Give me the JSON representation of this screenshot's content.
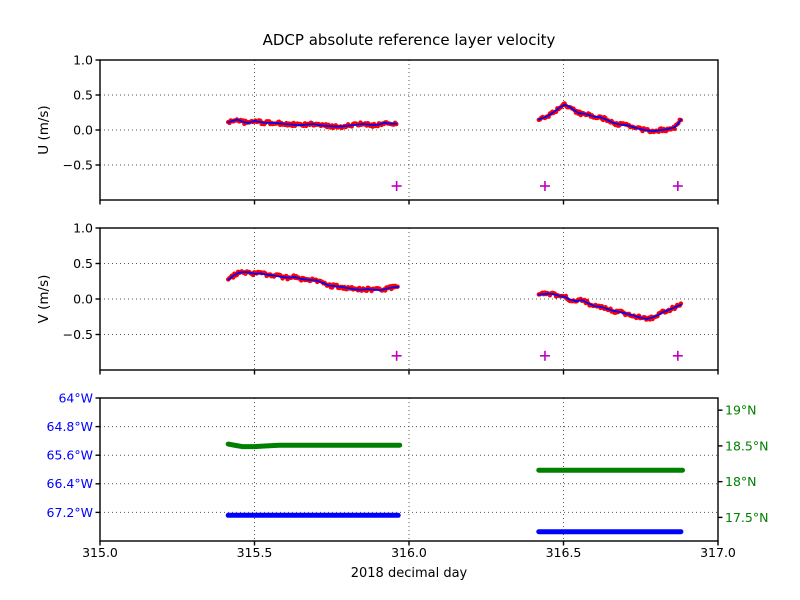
{
  "colors": {
    "scatter_red": "#ff0000",
    "line_blue": "#0000ff",
    "marker_magenta": "#bf00bf",
    "lon_blue": "#0000ff",
    "lat_green": "#008000",
    "grid": "#555555",
    "axis": "#000000",
    "background": "#ffffff"
  },
  "chart_data": [
    {
      "id": "u-velocity",
      "type": "scatter",
      "title": "ADCP absolute reference layer velocity",
      "ylabel": "U (m/s)",
      "ylim": [
        1.0,
        -1.0
      ],
      "yticks": [
        {
          "v": 1.0,
          "label": "1.0"
        },
        {
          "v": 0.5,
          "label": "0.5"
        },
        {
          "v": 0.0,
          "label": "0.0"
        },
        {
          "v": -0.5,
          "label": "−0.5"
        }
      ],
      "grid_y": [
        0.5,
        0.0,
        -0.5
      ],
      "xlim": [
        315.0,
        317.0
      ],
      "xticks": [
        315.0,
        315.5,
        316.0,
        316.5,
        317.0
      ],
      "grid_x": [
        315.5,
        316.0,
        316.5
      ],
      "series": [
        {
          "name": "u-segment-1",
          "spread": 0.024,
          "points": [
            [
              315.415,
              0.11
            ],
            [
              315.43,
              0.13
            ],
            [
              315.445,
              0.15
            ],
            [
              315.46,
              0.12
            ],
            [
              315.48,
              0.1
            ],
            [
              315.5,
              0.13
            ],
            [
              315.53,
              0.105
            ],
            [
              315.57,
              0.1
            ],
            [
              315.6,
              0.085
            ],
            [
              315.63,
              0.075
            ],
            [
              315.65,
              0.07
            ],
            [
              315.69,
              0.085
            ],
            [
              315.71,
              0.07
            ],
            [
              315.73,
              0.06
            ],
            [
              315.76,
              0.05
            ],
            [
              315.78,
              0.05
            ],
            [
              315.8,
              0.06
            ],
            [
              315.82,
              0.07
            ],
            [
              315.85,
              0.085
            ],
            [
              315.885,
              0.07
            ],
            [
              315.905,
              0.08
            ],
            [
              315.92,
              0.105
            ],
            [
              315.94,
              0.09
            ],
            [
              315.96,
              0.09
            ]
          ]
        },
        {
          "name": "u-segment-2",
          "spread": 0.024,
          "points": [
            [
              316.42,
              0.15
            ],
            [
              316.445,
              0.19
            ],
            [
              316.47,
              0.26
            ],
            [
              316.49,
              0.33
            ],
            [
              316.505,
              0.36
            ],
            [
              316.52,
              0.33
            ],
            [
              316.535,
              0.28
            ],
            [
              316.55,
              0.24
            ],
            [
              316.57,
              0.23
            ],
            [
              316.6,
              0.19
            ],
            [
              316.62,
              0.18
            ],
            [
              316.64,
              0.145
            ],
            [
              316.66,
              0.105
            ],
            [
              316.68,
              0.08
            ],
            [
              316.705,
              0.07
            ],
            [
              316.73,
              0.035
            ],
            [
              316.75,
              0.01
            ],
            [
              316.77,
              -0.005
            ],
            [
              316.79,
              -0.015
            ],
            [
              316.81,
              -0.005
            ],
            [
              316.835,
              0.01
            ],
            [
              316.86,
              0.04
            ],
            [
              316.875,
              0.115
            ],
            [
              316.88,
              0.15
            ]
          ]
        }
      ],
      "markers": {
        "symbol": "+",
        "points": [
          [
            315.96,
            -0.8
          ],
          [
            316.44,
            -0.8
          ],
          [
            316.87,
            -0.8
          ]
        ]
      }
    },
    {
      "id": "v-velocity",
      "type": "scatter",
      "ylabel": "V (m/s)",
      "ylim": [
        1.0,
        -1.0
      ],
      "yticks": [
        {
          "v": 1.0,
          "label": "1.0"
        },
        {
          "v": 0.5,
          "label": "0.5"
        },
        {
          "v": 0.0,
          "label": "0.0"
        },
        {
          "v": -0.5,
          "label": "−0.5"
        }
      ],
      "grid_y": [
        0.5,
        0.0,
        -0.5
      ],
      "xlim": [
        315.0,
        317.0
      ],
      "xticks": [
        315.0,
        315.5,
        316.0,
        316.5,
        317.0
      ],
      "grid_x": [
        315.5,
        316.0,
        316.5
      ],
      "series": [
        {
          "name": "v-segment-1",
          "spread": 0.024,
          "points": [
            [
              315.415,
              0.27
            ],
            [
              315.435,
              0.34
            ],
            [
              315.45,
              0.37
            ],
            [
              315.47,
              0.38
            ],
            [
              315.485,
              0.37
            ],
            [
              315.5,
              0.355
            ],
            [
              315.52,
              0.36
            ],
            [
              315.545,
              0.34
            ],
            [
              315.565,
              0.33
            ],
            [
              315.59,
              0.31
            ],
            [
              315.61,
              0.3
            ],
            [
              315.63,
              0.31
            ],
            [
              315.65,
              0.285
            ],
            [
              315.675,
              0.27
            ],
            [
              315.7,
              0.26
            ],
            [
              315.72,
              0.23
            ],
            [
              315.74,
              0.19
            ],
            [
              315.76,
              0.18
            ],
            [
              315.78,
              0.17
            ],
            [
              315.8,
              0.155
            ],
            [
              315.82,
              0.14
            ],
            [
              315.845,
              0.13
            ],
            [
              315.865,
              0.14
            ],
            [
              315.89,
              0.13
            ],
            [
              315.91,
              0.125
            ],
            [
              315.93,
              0.15
            ],
            [
              315.95,
              0.165
            ],
            [
              315.965,
              0.17
            ]
          ]
        },
        {
          "name": "v-segment-2",
          "spread": 0.024,
          "points": [
            [
              316.42,
              0.06
            ],
            [
              316.45,
              0.075
            ],
            [
              316.47,
              0.065
            ],
            [
              316.49,
              0.04
            ],
            [
              316.505,
              0.03
            ],
            [
              316.52,
              -0.005
            ],
            [
              316.54,
              -0.03
            ],
            [
              316.56,
              -0.015
            ],
            [
              316.58,
              -0.06
            ],
            [
              316.6,
              -0.1
            ],
            [
              316.62,
              -0.11
            ],
            [
              316.645,
              -0.145
            ],
            [
              316.665,
              -0.17
            ],
            [
              316.685,
              -0.185
            ],
            [
              316.71,
              -0.215
            ],
            [
              316.73,
              -0.24
            ],
            [
              316.75,
              -0.265
            ],
            [
              316.77,
              -0.28
            ],
            [
              316.785,
              -0.265
            ],
            [
              316.805,
              -0.23
            ],
            [
              316.82,
              -0.19
            ],
            [
              316.84,
              -0.155
            ],
            [
              316.86,
              -0.12
            ],
            [
              316.88,
              -0.08
            ]
          ]
        }
      ],
      "markers": {
        "symbol": "+",
        "points": [
          [
            315.96,
            -0.8
          ],
          [
            316.44,
            -0.8
          ],
          [
            316.87,
            -0.8
          ]
        ]
      }
    },
    {
      "id": "position",
      "type": "line",
      "xlabel": "2018 decimal day",
      "xlim": [
        315.0,
        317.0
      ],
      "xticks": [
        {
          "v": 315.0,
          "label": "315.0"
        },
        {
          "v": 315.5,
          "label": "315.5"
        },
        {
          "v": 316.0,
          "label": "316.0"
        },
        {
          "v": 316.5,
          "label": "316.5"
        },
        {
          "v": 317.0,
          "label": "317.0"
        }
      ],
      "grid_x": [
        315.5,
        316.0,
        316.5
      ],
      "left_axis": {
        "name": "longitude",
        "ylim": [
          64.0,
          68.0
        ],
        "yticks": [
          {
            "v": 64.0,
            "label": "64°W"
          },
          {
            "v": 64.8,
            "label": "64.8°W"
          },
          {
            "v": 65.6,
            "label": "65.6°W"
          },
          {
            "v": 66.4,
            "label": "66.4°W"
          },
          {
            "v": 67.2,
            "label": "67.2°W"
          }
        ],
        "grid_y": [
          64.8,
          65.6,
          66.4,
          67.2
        ]
      },
      "right_axis": {
        "name": "latitude",
        "ylim": [
          19.17,
          17.17
        ],
        "yticks": [
          {
            "v": 19.0,
            "label": "19°N"
          },
          {
            "v": 18.5,
            "label": "18.5°N"
          },
          {
            "v": 18.0,
            "label": "18°N"
          },
          {
            "v": 17.5,
            "label": "17.5°N"
          }
        ]
      },
      "series": [
        {
          "name": "longitude-segment-1",
          "axis": "left",
          "points": [
            [
              315.415,
              67.28
            ],
            [
              315.965,
              67.28
            ]
          ]
        },
        {
          "name": "longitude-segment-2",
          "axis": "left",
          "points": [
            [
              316.42,
              67.74
            ],
            [
              316.88,
              67.74
            ]
          ]
        },
        {
          "name": "latitude-segment-1",
          "axis": "right",
          "points": [
            [
              315.415,
              18.525
            ],
            [
              315.44,
              18.505
            ],
            [
              315.46,
              18.49
            ],
            [
              315.5,
              18.49
            ],
            [
              315.54,
              18.5
            ],
            [
              315.58,
              18.51
            ],
            [
              315.65,
              18.51
            ],
            [
              315.97,
              18.51
            ]
          ]
        },
        {
          "name": "latitude-segment-2",
          "axis": "right",
          "points": [
            [
              316.42,
              18.16
            ],
            [
              316.885,
              18.16
            ]
          ]
        }
      ]
    }
  ]
}
